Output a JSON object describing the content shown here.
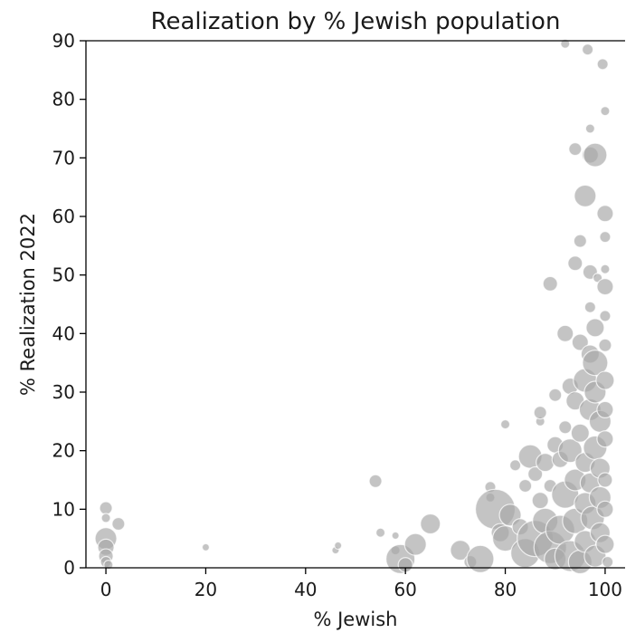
{
  "chart_data": {
    "type": "scatter",
    "title": "Realization by % Jewish population",
    "xlabel": "% Jewish",
    "ylabel": "% Realization 2022",
    "xlim": [
      -4,
      104
    ],
    "ylim": [
      0,
      90
    ],
    "xticks": [
      0,
      20,
      40,
      60,
      80,
      100
    ],
    "yticks": [
      0,
      10,
      20,
      30,
      40,
      50,
      60,
      70,
      80,
      90
    ],
    "grid": false,
    "legend": "none",
    "color": "#a8a8a8",
    "note_size": "Bubble size varies by an unlabeled quantity; the s values are relative",
    "points": [
      {
        "x": 0,
        "y": 10.2,
        "s": 7
      },
      {
        "x": 0,
        "y": 8.5,
        "s": 5
      },
      {
        "x": 0,
        "y": 5.0,
        "s": 12
      },
      {
        "x": 0,
        "y": 3.5,
        "s": 9
      },
      {
        "x": 0,
        "y": 2.0,
        "s": 8
      },
      {
        "x": 0,
        "y": 1.0,
        "s": 6
      },
      {
        "x": 0.5,
        "y": 0.5,
        "s": 5
      },
      {
        "x": 2.5,
        "y": 7.5,
        "s": 7
      },
      {
        "x": 20,
        "y": 3.5,
        "s": 4
      },
      {
        "x": 46,
        "y": 3.0,
        "s": 4
      },
      {
        "x": 46.5,
        "y": 3.8,
        "s": 4
      },
      {
        "x": 54,
        "y": 14.8,
        "s": 7
      },
      {
        "x": 55,
        "y": 6.0,
        "s": 5
      },
      {
        "x": 58,
        "y": 5.5,
        "s": 4
      },
      {
        "x": 58,
        "y": 3.0,
        "s": 5
      },
      {
        "x": 59,
        "y": 1.5,
        "s": 16
      },
      {
        "x": 60,
        "y": 0.5,
        "s": 8
      },
      {
        "x": 62,
        "y": 4.0,
        "s": 12
      },
      {
        "x": 65,
        "y": 7.5,
        "s": 11
      },
      {
        "x": 71,
        "y": 3.0,
        "s": 11
      },
      {
        "x": 73,
        "y": 1.0,
        "s": 7
      },
      {
        "x": 75,
        "y": 1.5,
        "s": 15
      },
      {
        "x": 77,
        "y": 13.8,
        "s": 6
      },
      {
        "x": 77,
        "y": 12.0,
        "s": 5
      },
      {
        "x": 78,
        "y": 10.0,
        "s": 22
      },
      {
        "x": 79,
        "y": 6.0,
        "s": 10
      },
      {
        "x": 80,
        "y": 24.5,
        "s": 5
      },
      {
        "x": 80,
        "y": 5.0,
        "s": 14
      },
      {
        "x": 81,
        "y": 9.0,
        "s": 12
      },
      {
        "x": 82,
        "y": 17.5,
        "s": 6
      },
      {
        "x": 83,
        "y": 7.0,
        "s": 9
      },
      {
        "x": 84,
        "y": 14.0,
        "s": 7
      },
      {
        "x": 84,
        "y": 2.5,
        "s": 16
      },
      {
        "x": 85,
        "y": 19.0,
        "s": 13
      },
      {
        "x": 86,
        "y": 5.0,
        "s": 20
      },
      {
        "x": 86,
        "y": 16.0,
        "s": 8
      },
      {
        "x": 87,
        "y": 25.0,
        "s": 5
      },
      {
        "x": 87,
        "y": 26.5,
        "s": 7
      },
      {
        "x": 87,
        "y": 11.5,
        "s": 9
      },
      {
        "x": 88,
        "y": 18.0,
        "s": 10
      },
      {
        "x": 88,
        "y": 8.0,
        "s": 14
      },
      {
        "x": 89,
        "y": 3.5,
        "s": 18
      },
      {
        "x": 89,
        "y": 48.5,
        "s": 8
      },
      {
        "x": 89,
        "y": 14.0,
        "s": 7
      },
      {
        "x": 90,
        "y": 21.0,
        "s": 9
      },
      {
        "x": 90,
        "y": 29.5,
        "s": 7
      },
      {
        "x": 90,
        "y": 1.5,
        "s": 12
      },
      {
        "x": 91,
        "y": 6.5,
        "s": 16
      },
      {
        "x": 91,
        "y": 18.5,
        "s": 9
      },
      {
        "x": 92,
        "y": 89.5,
        "s": 5
      },
      {
        "x": 92,
        "y": 40.0,
        "s": 9
      },
      {
        "x": 92,
        "y": 12.5,
        "s": 15
      },
      {
        "x": 92,
        "y": 24.0,
        "s": 7
      },
      {
        "x": 93,
        "y": 20.0,
        "s": 13
      },
      {
        "x": 93,
        "y": 31.0,
        "s": 9
      },
      {
        "x": 93,
        "y": 2.0,
        "s": 17
      },
      {
        "x": 94,
        "y": 71.5,
        "s": 7
      },
      {
        "x": 94,
        "y": 52.0,
        "s": 8
      },
      {
        "x": 94,
        "y": 28.5,
        "s": 10
      },
      {
        "x": 94,
        "y": 15.0,
        "s": 12
      },
      {
        "x": 94,
        "y": 8.0,
        "s": 14
      },
      {
        "x": 95,
        "y": 55.8,
        "s": 7
      },
      {
        "x": 95,
        "y": 38.5,
        "s": 9
      },
      {
        "x": 95,
        "y": 23.0,
        "s": 10
      },
      {
        "x": 95,
        "y": 1.0,
        "s": 13
      },
      {
        "x": 96,
        "y": 63.5,
        "s": 12
      },
      {
        "x": 96,
        "y": 32.0,
        "s": 13
      },
      {
        "x": 96,
        "y": 18.0,
        "s": 11
      },
      {
        "x": 96,
        "y": 11.0,
        "s": 12
      },
      {
        "x": 96,
        "y": 4.5,
        "s": 12
      },
      {
        "x": 96.5,
        "y": 88.5,
        "s": 6
      },
      {
        "x": 97,
        "y": 75.0,
        "s": 5
      },
      {
        "x": 97,
        "y": 70.5,
        "s": 9
      },
      {
        "x": 97,
        "y": 50.5,
        "s": 8
      },
      {
        "x": 97,
        "y": 44.5,
        "s": 6
      },
      {
        "x": 97,
        "y": 27.0,
        "s": 12
      },
      {
        "x": 97,
        "y": 36.5,
        "s": 10
      },
      {
        "x": 97,
        "y": 14.5,
        "s": 11
      },
      {
        "x": 97.5,
        "y": 8.5,
        "s": 13
      },
      {
        "x": 98,
        "y": 70.5,
        "s": 13
      },
      {
        "x": 98,
        "y": 41.0,
        "s": 10
      },
      {
        "x": 98,
        "y": 35.0,
        "s": 14
      },
      {
        "x": 98,
        "y": 20.5,
        "s": 13
      },
      {
        "x": 98,
        "y": 30.0,
        "s": 12
      },
      {
        "x": 98,
        "y": 2.0,
        "s": 12
      },
      {
        "x": 98.5,
        "y": 49.5,
        "s": 5
      },
      {
        "x": 99,
        "y": 25.0,
        "s": 12
      },
      {
        "x": 99,
        "y": 17.0,
        "s": 11
      },
      {
        "x": 99,
        "y": 12.0,
        "s": 12
      },
      {
        "x": 99,
        "y": 6.0,
        "s": 11
      },
      {
        "x": 99.5,
        "y": 86.0,
        "s": 6
      },
      {
        "x": 100,
        "y": 78.0,
        "s": 5
      },
      {
        "x": 100,
        "y": 60.5,
        "s": 9
      },
      {
        "x": 100,
        "y": 56.5,
        "s": 6
      },
      {
        "x": 100,
        "y": 51.0,
        "s": 5
      },
      {
        "x": 100,
        "y": 48.0,
        "s": 9
      },
      {
        "x": 100,
        "y": 43.0,
        "s": 6
      },
      {
        "x": 100,
        "y": 38.0,
        "s": 7
      },
      {
        "x": 100,
        "y": 32.0,
        "s": 10
      },
      {
        "x": 100,
        "y": 27.0,
        "s": 9
      },
      {
        "x": 100,
        "y": 22.0,
        "s": 9
      },
      {
        "x": 100,
        "y": 15.0,
        "s": 8
      },
      {
        "x": 100,
        "y": 10.0,
        "s": 9
      },
      {
        "x": 100,
        "y": 4.0,
        "s": 10
      },
      {
        "x": 100.5,
        "y": 1.0,
        "s": 6
      }
    ]
  }
}
